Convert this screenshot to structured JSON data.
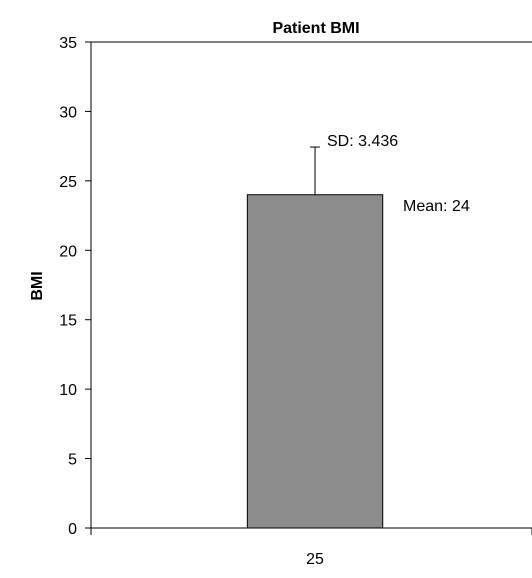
{
  "chart_data": {
    "type": "bar",
    "title": "Patient BMI",
    "xlabel": "",
    "ylabel": "BMI",
    "categories": [
      "25"
    ],
    "values": [
      24
    ],
    "error": [
      3.436
    ],
    "ylim": [
      0,
      35
    ],
    "yticks": [
      0,
      5,
      10,
      15,
      20,
      25,
      30,
      35
    ],
    "grid": false,
    "legend": "none",
    "annotations": {
      "sd_label": "SD: 3.436",
      "mean_label": "Mean: 24"
    },
    "colors": {
      "bar_fill": "#8c8c8c",
      "bar_stroke": "#000000",
      "axis": "#000000"
    }
  }
}
